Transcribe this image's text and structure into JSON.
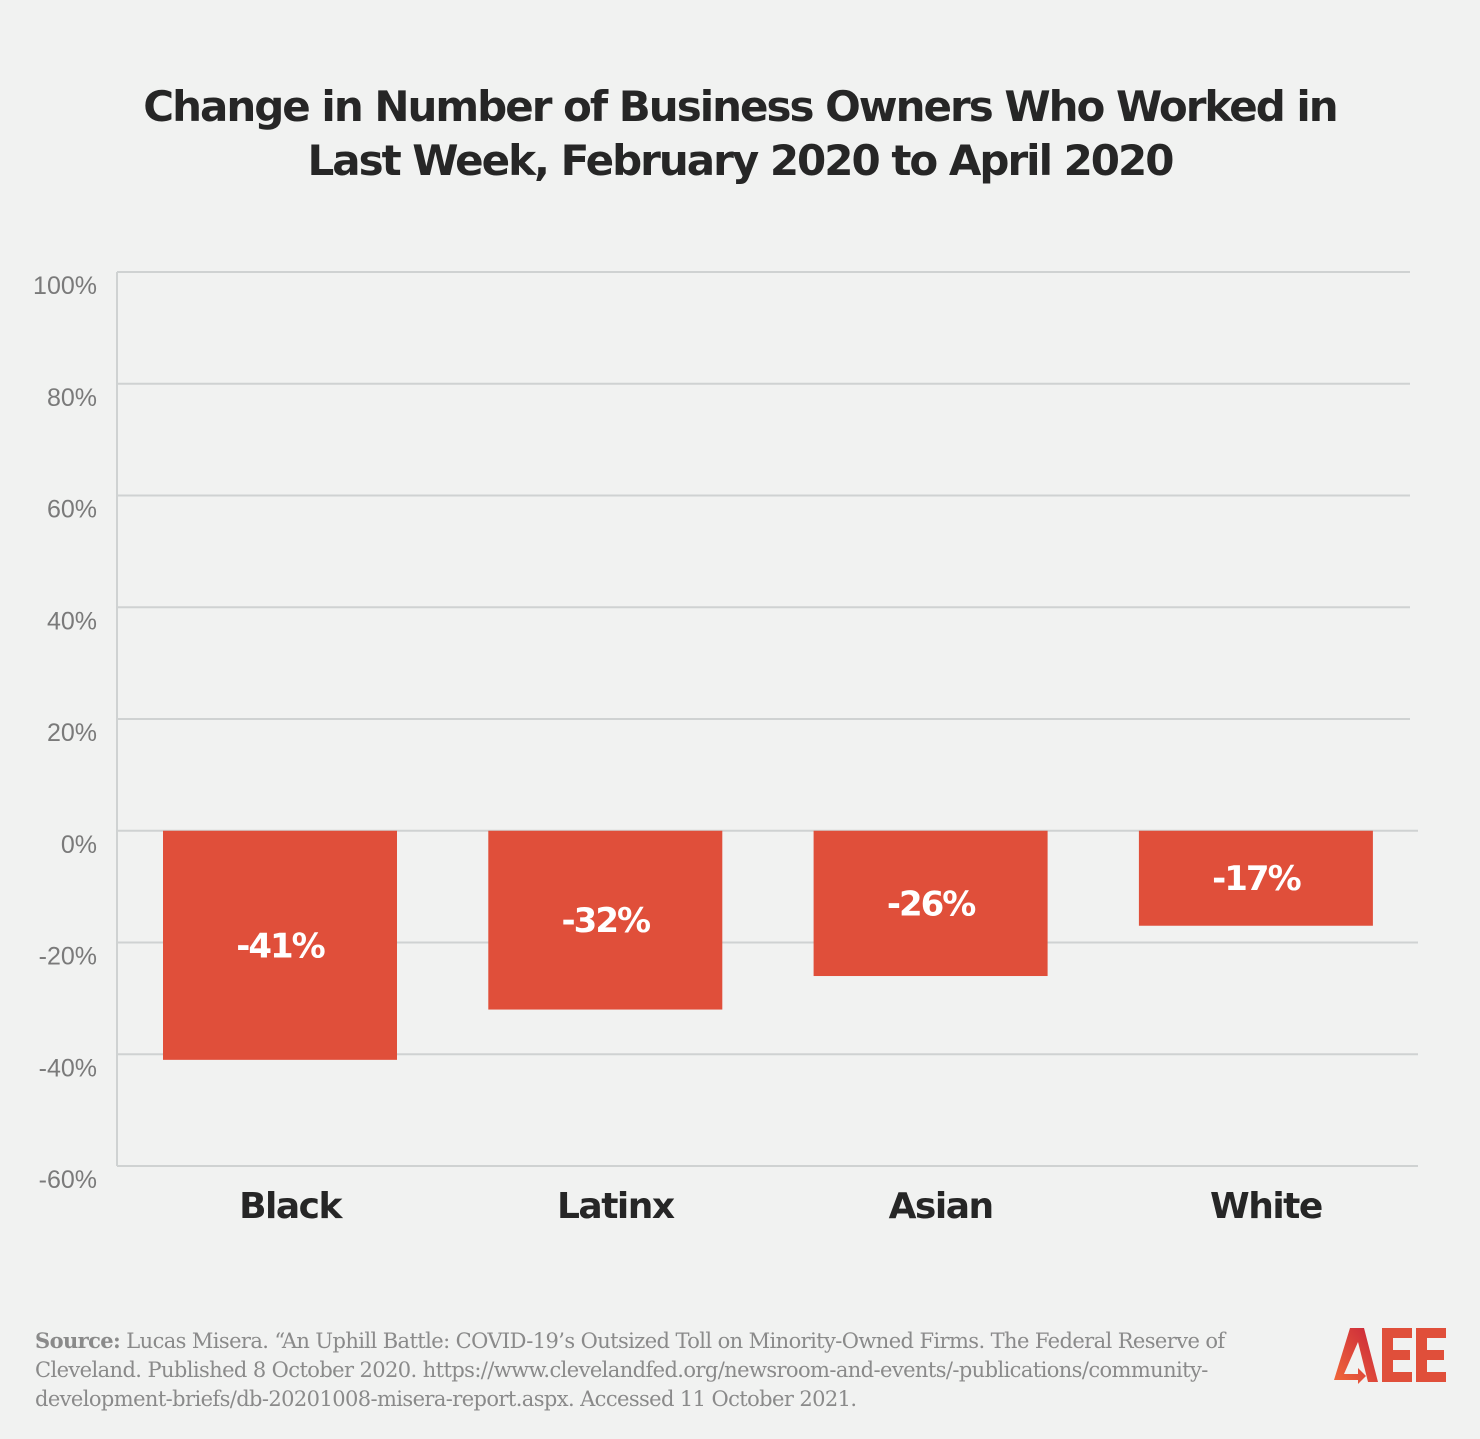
{
  "chart_data": {
    "type": "bar",
    "title": "Change in Number of Business Owners Who Worked in Last Week, February 2020 to April 2020",
    "categories": [
      "Black",
      "Latinx",
      "Asian",
      "White"
    ],
    "values": [
      -41,
      -32,
      -26,
      -17
    ],
    "data_labels": [
      "-41%",
      "-32%",
      "-26%",
      "-17%"
    ],
    "xlabel": "",
    "ylabel": "",
    "ylim": [
      -60,
      100
    ],
    "yticks": [
      100,
      80,
      60,
      40,
      20,
      0,
      -20,
      -40,
      -60
    ],
    "ytick_labels": [
      "100%",
      "80%",
      "60%",
      "40%",
      "20%",
      "0%",
      "-20%",
      "-40%",
      "-60%"
    ],
    "grid": true,
    "legend": "none",
    "bar_color": "#e04f3a"
  },
  "source": {
    "label": "Source:",
    "text": "Lucas Misera. “An Uphill Battle: COVID-19’s Outsized Toll on Minority-Owned Firms. The Federal Reserve of Cleveland. Published 8 October 2020. https://www.clevelandfed.org/newsroom-and-events/-publications/community-development-briefs/db-20201008-misera-report.aspx. Accessed 11 October 2021."
  },
  "logo": {
    "text": "AEE",
    "color": "#e04f3a"
  }
}
